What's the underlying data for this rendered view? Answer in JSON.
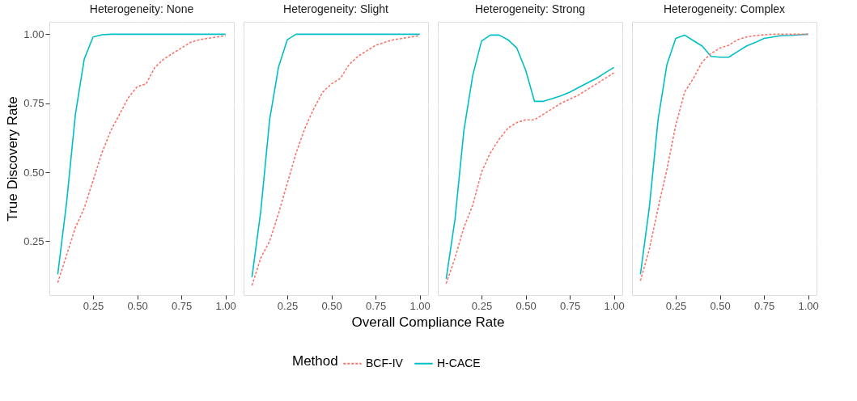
{
  "chart_data": [
    {
      "type": "line",
      "title": "Heterogeneity: None",
      "annotations": [
        "Overall Compliance Rate"
      ],
      "ylabel": "True Discovery Rate",
      "legend_title": "Method",
      "legend": "bottom",
      "grid": true,
      "x": [
        0.05,
        0.1,
        0.15,
        0.2,
        0.25,
        0.3,
        0.35,
        0.4,
        0.45,
        0.5,
        0.55,
        0.6,
        0.65,
        0.7,
        0.75,
        0.8,
        0.85,
        0.9,
        0.95,
        1.0
      ],
      "xlim": [
        0.0025,
        1.0475
      ],
      "xticks": [
        {
          "value": 0.25,
          "label": "0.25"
        },
        {
          "value": 0.5,
          "label": "0.50"
        },
        {
          "value": 0.75,
          "label": "0.75"
        },
        {
          "value": 1.0,
          "label": "1.00"
        }
      ],
      "ylim": [
        0.055,
        1.045
      ],
      "yticks": [
        {
          "value": 0.25,
          "label": "0.25"
        },
        {
          "value": 0.5,
          "label": "0.50"
        },
        {
          "value": 0.75,
          "label": "0.75"
        },
        {
          "value": 1.0,
          "label": "1.00"
        }
      ],
      "series": [
        {
          "name": "BCF-IV",
          "color": "#f8766d",
          "line_style": "dashed",
          "values": [
            0.1,
            0.2,
            0.3,
            0.37,
            0.47,
            0.57,
            0.65,
            0.71,
            0.77,
            0.81,
            0.82,
            0.88,
            0.91,
            0.93,
            0.95,
            0.97,
            0.98,
            0.985,
            0.99,
            0.995
          ]
        },
        {
          "name": "H-CACE",
          "color": "#00bfc4",
          "line_style": "solid",
          "values": [
            0.13,
            0.39,
            0.71,
            0.91,
            0.99,
            0.998,
            1.0,
            1.0,
            1.0,
            1.0,
            1.0,
            1.0,
            1.0,
            1.0,
            1.0,
            1.0,
            1.0,
            1.0,
            1.0,
            1.0
          ]
        }
      ]
    },
    {
      "type": "line",
      "title": "Heterogeneity: Slight",
      "grid": true,
      "tick_labels": "x",
      "x": [
        0.05,
        0.1,
        0.15,
        0.2,
        0.25,
        0.3,
        0.35,
        0.4,
        0.45,
        0.5,
        0.55,
        0.6,
        0.65,
        0.7,
        0.75,
        0.8,
        0.85,
        0.9,
        0.95,
        1.0
      ],
      "xlim": [
        0.0025,
        1.0475
      ],
      "xticks": [
        {
          "value": 0.25,
          "label": "0.25"
        },
        {
          "value": 0.5,
          "label": "0.50"
        },
        {
          "value": 0.75,
          "label": "0.75"
        },
        {
          "value": 1.0,
          "label": "1.00"
        }
      ],
      "ylim": [
        0.055,
        1.045
      ],
      "yticks": [
        0.25,
        0.5,
        0.75,
        1.0
      ],
      "series": [
        {
          "color": "#f8766d",
          "line_style": "dashed",
          "values": [
            0.09,
            0.19,
            0.25,
            0.35,
            0.46,
            0.57,
            0.66,
            0.73,
            0.79,
            0.82,
            0.84,
            0.89,
            0.92,
            0.94,
            0.96,
            0.97,
            0.98,
            0.985,
            0.99,
            0.995
          ]
        },
        {
          "color": "#00bfc4",
          "line_style": "solid",
          "values": [
            0.12,
            0.36,
            0.69,
            0.88,
            0.98,
            1.0,
            1.0,
            1.0,
            1.0,
            1.0,
            1.0,
            1.0,
            1.0,
            1.0,
            1.0,
            1.0,
            1.0,
            1.0,
            1.0,
            1.0
          ]
        }
      ]
    },
    {
      "type": "line",
      "title": "Heterogeneity: Strong",
      "grid": true,
      "tick_labels": "x",
      "x": [
        0.05,
        0.1,
        0.15,
        0.2,
        0.25,
        0.3,
        0.35,
        0.4,
        0.45,
        0.5,
        0.55,
        0.6,
        0.65,
        0.7,
        0.75,
        0.8,
        0.85,
        0.9,
        0.95,
        1.0
      ],
      "xlim": [
        0.0025,
        1.0475
      ],
      "xticks": [
        {
          "value": 0.25,
          "label": "0.25"
        },
        {
          "value": 0.5,
          "label": "0.50"
        },
        {
          "value": 0.75,
          "label": "0.75"
        },
        {
          "value": 1.0,
          "label": "1.00"
        }
      ],
      "ylim": [
        0.055,
        1.045
      ],
      "yticks": [
        0.25,
        0.5,
        0.75,
        1.0
      ],
      "series": [
        {
          "color": "#f8766d",
          "line_style": "dashed",
          "values": [
            0.097,
            0.19,
            0.3,
            0.38,
            0.5,
            0.57,
            0.62,
            0.66,
            0.68,
            0.69,
            0.69,
            0.71,
            0.73,
            0.75,
            0.765,
            0.78,
            0.8,
            0.82,
            0.84,
            0.86
          ]
        },
        {
          "color": "#00bfc4",
          "line_style": "solid",
          "values": [
            0.114,
            0.33,
            0.65,
            0.85,
            0.975,
            0.997,
            0.997,
            0.98,
            0.95,
            0.87,
            0.757,
            0.757,
            0.767,
            0.777,
            0.79,
            0.807,
            0.824,
            0.84,
            0.86,
            0.88
          ]
        }
      ]
    },
    {
      "type": "line",
      "title": "Heterogeneity: Complex",
      "grid": true,
      "tick_labels": "x",
      "x": [
        0.05,
        0.1,
        0.15,
        0.2,
        0.25,
        0.3,
        0.35,
        0.4,
        0.45,
        0.5,
        0.55,
        0.6,
        0.65,
        0.7,
        0.75,
        0.8,
        0.85,
        0.9,
        0.95,
        1.0
      ],
      "xlim": [
        0.0025,
        1.0475
      ],
      "xticks": [
        {
          "value": 0.25,
          "label": "0.25"
        },
        {
          "value": 0.5,
          "label": "0.50"
        },
        {
          "value": 0.75,
          "label": "0.75"
        },
        {
          "value": 1.0,
          "label": "1.00"
        }
      ],
      "ylim": [
        0.055,
        1.045
      ],
      "yticks": [
        0.25,
        0.5,
        0.75,
        1.0
      ],
      "series": [
        {
          "color": "#f8766d",
          "line_style": "dashed",
          "values": [
            0.107,
            0.22,
            0.37,
            0.51,
            0.67,
            0.79,
            0.84,
            0.9,
            0.93,
            0.95,
            0.96,
            0.98,
            0.99,
            0.995,
            0.998,
            1.0,
            1.0,
            1.0,
            1.0,
            1.0
          ]
        },
        {
          "color": "#00bfc4",
          "line_style": "solid",
          "values": [
            0.13,
            0.37,
            0.69,
            0.89,
            0.985,
            0.997,
            0.977,
            0.957,
            0.92,
            0.917,
            0.917,
            0.937,
            0.957,
            0.97,
            0.985,
            0.99,
            0.995,
            0.996,
            0.998,
            1.0
          ]
        }
      ]
    }
  ]
}
